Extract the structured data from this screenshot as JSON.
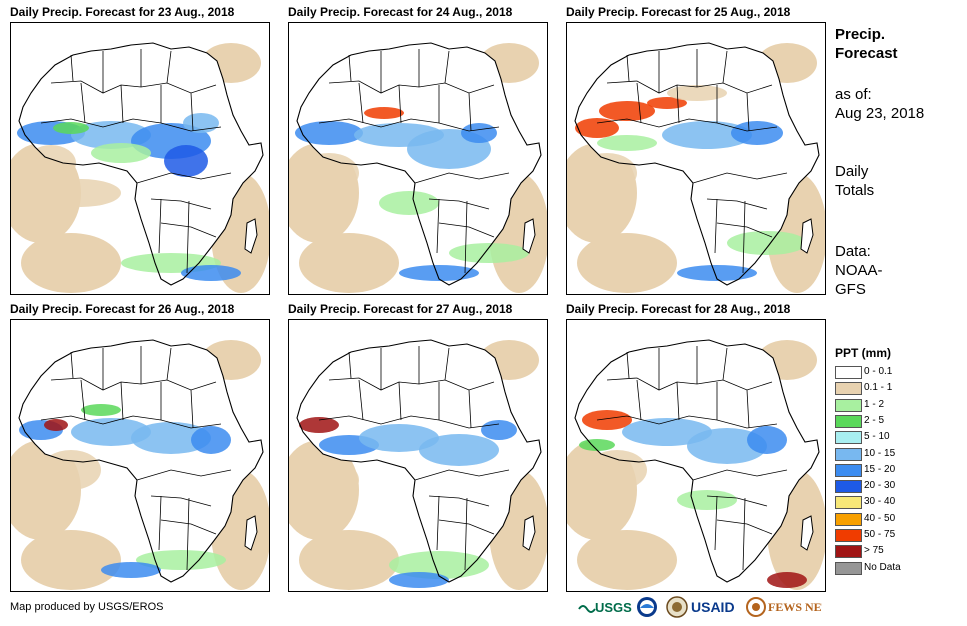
{
  "panels": [
    {
      "title": "Daily Precip. Forecast for 23 Aug., 2018"
    },
    {
      "title": "Daily Precip. Forecast for 24 Aug., 2018"
    },
    {
      "title": "Daily Precip. Forecast for 25 Aug., 2018"
    },
    {
      "title": "Daily Precip. Forecast for 26 Aug., 2018"
    },
    {
      "title": "Daily Precip. Forecast for 27 Aug., 2018"
    },
    {
      "title": "Daily Precip. Forecast for 28 Aug., 2018"
    }
  ],
  "side": {
    "heading_line1": "Precip.",
    "heading_line2": "Forecast",
    "asof_label": "as of:",
    "asof_date": "Aug 23, 2018",
    "totals_line1": "Daily",
    "totals_line2": "Totals",
    "data_line1": "Data:",
    "data_line2": "NOAA-",
    "data_line3": "GFS"
  },
  "legend": {
    "title": "PPT (mm)",
    "items": [
      {
        "label": "0 - 0.1",
        "color": "#ffffff"
      },
      {
        "label": "0.1 - 1",
        "color": "#e8d2b0"
      },
      {
        "label": "1 - 2",
        "color": "#a8f0a0"
      },
      {
        "label": "2 - 5",
        "color": "#5ad85a"
      },
      {
        "label": "5 - 10",
        "color": "#a8eef0"
      },
      {
        "label": "10 - 15",
        "color": "#78b8f0"
      },
      {
        "label": "15 - 20",
        "color": "#3c8cf0"
      },
      {
        "label": "20 - 30",
        "color": "#1e5ae6"
      },
      {
        "label": "30 - 40",
        "color": "#f8e878"
      },
      {
        "label": "40 - 50",
        "color": "#f8a000"
      },
      {
        "label": "50 - 75",
        "color": "#f03c00"
      },
      {
        "label": "> 75",
        "color": "#a01414"
      },
      {
        "label": "No Data",
        "color": "#969696"
      }
    ]
  },
  "footer": {
    "credit": "Map produced by USGS/EROS",
    "logos": [
      "USGS",
      "NOAA",
      "USAID",
      "FEWS NET"
    ]
  }
}
